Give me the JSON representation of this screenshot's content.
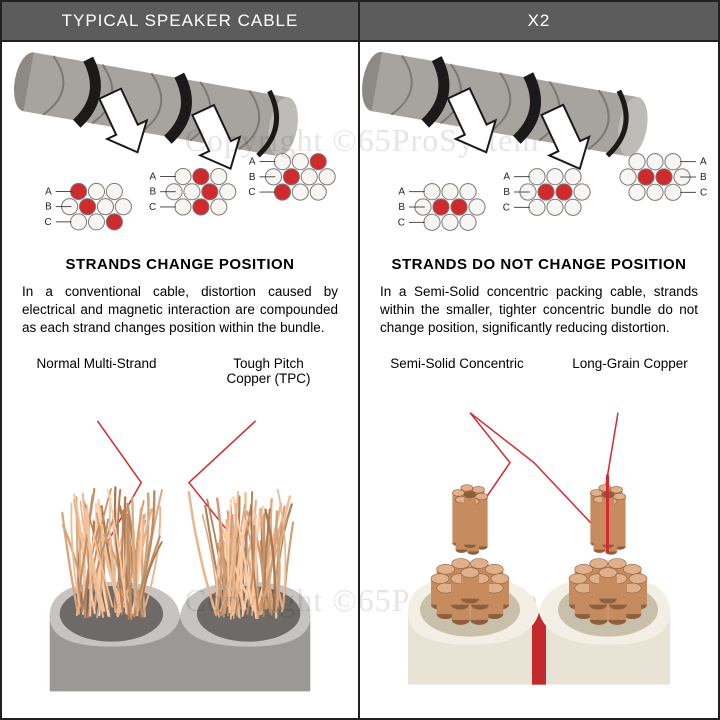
{
  "colors": {
    "header_bg": "#5d5c5c",
    "header_text": "#ffffff",
    "border": "#231f20",
    "red": "#d7282f",
    "strand_red": "#cf2a2e",
    "strand_white": "#f7f6f4",
    "strand_stroke": "#7c7874",
    "cable_body": "#a7a4a0",
    "cable_shadow": "#6e6b67",
    "arrow_fill": "#ffffff",
    "arrow_stroke": "#1a1a1a",
    "copper": "#c68b5e",
    "copper_light": "#e0b08a",
    "copper_dark": "#8e5f3c",
    "jacket_left": "#9b9896",
    "jacket_left_dark": "#6d6a67",
    "jacket_right": "#e9e3d6",
    "jacket_right_dark": "#c9c0ac",
    "jacket_right_red": "#c22a2e",
    "text": "#231f20"
  },
  "left": {
    "header": "TYPICAL SPEAKER CABLE",
    "subheading": "STRANDS CHANGE POSITION",
    "body": "In a conventional cable, distortion caused by electrical and magnetic interaction are compounded as each strand changes position within the bundle.",
    "bottom_label_left": "Normal Multi-Strand",
    "bottom_label_right": "Tough Pitch Copper (TPC)",
    "letters": [
      "A",
      "B",
      "C"
    ],
    "cross_sections": {
      "count": 3,
      "red_positions": [
        [
          [
            0,
            0.5
          ],
          [
            2,
            1.5
          ],
          [
            2,
            2.5
          ]
        ],
        [
          [
            1,
            0
          ],
          [
            2,
            1.5
          ],
          [
            1,
            3
          ]
        ],
        [
          [
            2,
            0.5
          ],
          [
            1,
            2
          ],
          [
            0,
            2.5
          ]
        ]
      ]
    }
  },
  "right": {
    "header": "X2",
    "subheading": "STRANDS DO NOT CHANGE POSITION",
    "body": "In a Semi-Solid concentric packing cable, strands within the smaller, tighter concentric bundle do not change position, significantly reducing distortion.",
    "bottom_label_left": "Semi-Solid Concentric",
    "bottom_label_right": "Long-Grain Copper",
    "letters": [
      "A",
      "B",
      "C"
    ],
    "cross_sections": {
      "count": 3,
      "red_positions_fixed": [
        [
          1,
          1
        ],
        [
          1,
          2
        ]
      ]
    }
  },
  "watermark": "Copyright ©65ProSystem"
}
